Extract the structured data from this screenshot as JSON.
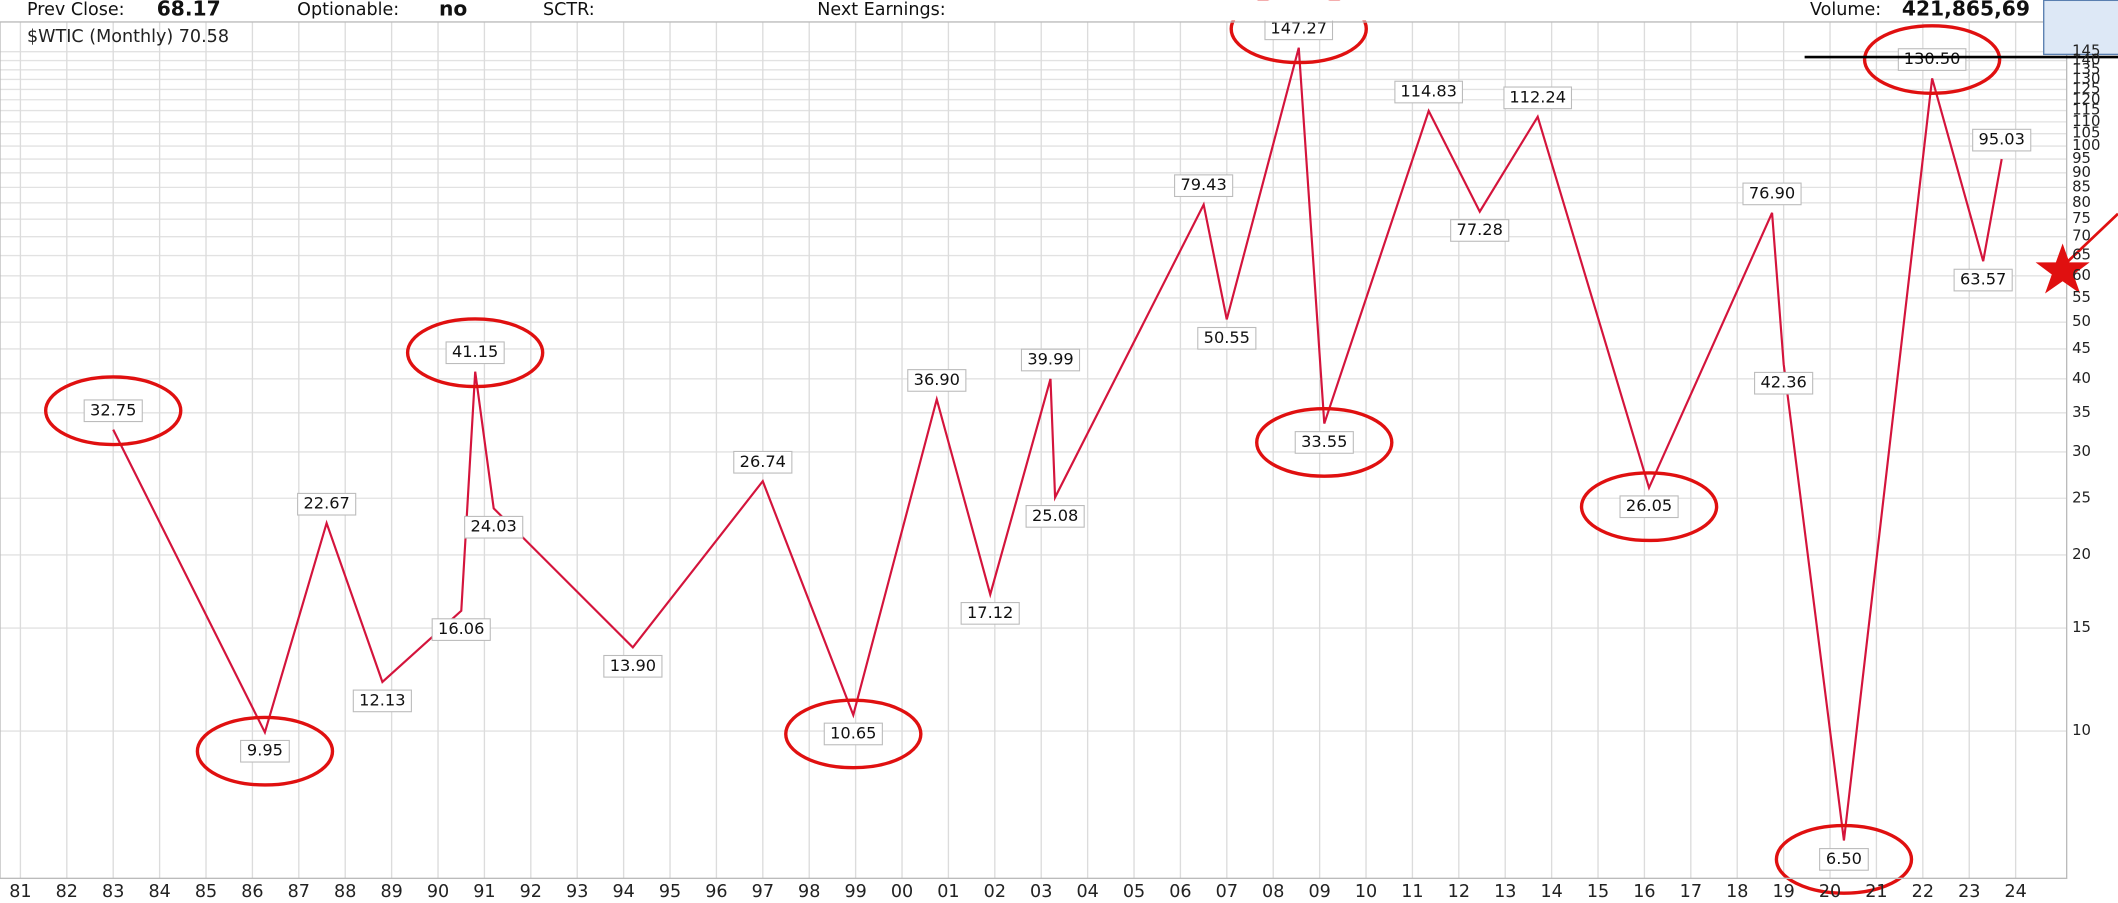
{
  "header": {
    "prev_close_label": "Prev Close:",
    "prev_close": "68.17",
    "optionable_label": "Optionable:",
    "optionable": "no",
    "sctr_label": "SCTR:",
    "earnings_label": "Next Earnings:",
    "volume_label": "Volume:",
    "volume": "421,865,69"
  },
  "chart_data": {
    "type": "line",
    "legend": "$WTIC (Monthly) 70.58",
    "log_scale": true,
    "grid": true,
    "xlim": [
      1980.56,
      2025.1
    ],
    "ylim": [
      5.6,
      163
    ],
    "xticks": [
      {
        "value": 1981,
        "label": "81"
      },
      {
        "value": 1982,
        "label": "82"
      },
      {
        "value": 1983,
        "label": "83"
      },
      {
        "value": 1984,
        "label": "84"
      },
      {
        "value": 1985,
        "label": "85"
      },
      {
        "value": 1986,
        "label": "86"
      },
      {
        "value": 1987,
        "label": "87"
      },
      {
        "value": 1988,
        "label": "88"
      },
      {
        "value": 1989,
        "label": "89"
      },
      {
        "value": 1990,
        "label": "90"
      },
      {
        "value": 1991,
        "label": "91"
      },
      {
        "value": 1992,
        "label": "92"
      },
      {
        "value": 1993,
        "label": "93"
      },
      {
        "value": 1994,
        "label": "94"
      },
      {
        "value": 1995,
        "label": "95"
      },
      {
        "value": 1996,
        "label": "96"
      },
      {
        "value": 1997,
        "label": "97"
      },
      {
        "value": 1998,
        "label": "98"
      },
      {
        "value": 1999,
        "label": "99"
      },
      {
        "value": 2000,
        "label": "00"
      },
      {
        "value": 2001,
        "label": "01"
      },
      {
        "value": 2002,
        "label": "02"
      },
      {
        "value": 2003,
        "label": "03"
      },
      {
        "value": 2004,
        "label": "04"
      },
      {
        "value": 2005,
        "label": "05"
      },
      {
        "value": 2006,
        "label": "06"
      },
      {
        "value": 2007,
        "label": "07"
      },
      {
        "value": 2008,
        "label": "08"
      },
      {
        "value": 2009,
        "label": "09"
      },
      {
        "value": 2010,
        "label": "10"
      },
      {
        "value": 2011,
        "label": "11"
      },
      {
        "value": 2012,
        "label": "12"
      },
      {
        "value": 2013,
        "label": "13"
      },
      {
        "value": 2014,
        "label": "14"
      },
      {
        "value": 2015,
        "label": "15"
      },
      {
        "value": 2016,
        "label": "16"
      },
      {
        "value": 2017,
        "label": "17"
      },
      {
        "value": 2018,
        "label": "18"
      },
      {
        "value": 2019,
        "label": "19"
      },
      {
        "value": 2020,
        "label": "20"
      },
      {
        "value": 2021,
        "label": "21"
      },
      {
        "value": 2022,
        "label": "22"
      },
      {
        "value": 2023,
        "label": "23"
      },
      {
        "value": 2024,
        "label": "24"
      }
    ],
    "yticks": [
      10,
      15,
      20,
      25,
      30,
      35,
      40,
      45,
      50,
      55,
      60,
      65,
      70,
      75,
      80,
      85,
      90,
      95,
      100,
      105,
      110,
      115,
      120,
      125,
      130,
      135,
      140,
      145
    ],
    "series": [
      {
        "name": "$WTIC",
        "color": "#d4143c",
        "x": [
          1983.0,
          1986.27,
          1987.6,
          1988.8,
          1990.5,
          1990.8,
          1991.2,
          1994.2,
          1997.0,
          1998.95,
          2000.75,
          2001.9,
          2003.2,
          2003.3,
          2006.5,
          2007.0,
          2008.55,
          2009.1,
          2011.35,
          2012.45,
          2013.7,
          2016.1,
          2018.75,
          2019.0,
          2020.3,
          2022.2,
          2023.3,
          2023.7
        ],
        "values": [
          32.75,
          9.95,
          22.67,
          12.13,
          16.06,
          41.15,
          24.03,
          13.9,
          26.74,
          10.65,
          36.9,
          17.12,
          39.99,
          25.08,
          79.43,
          50.55,
          147.27,
          33.55,
          114.83,
          77.28,
          112.24,
          26.05,
          76.9,
          42.36,
          6.5,
          130.5,
          63.57,
          95.03
        ],
        "value_labels": [
          "32.75",
          "9.95",
          "22.67",
          "12.13",
          "16.06",
          "41.15",
          "24.03",
          "13.90",
          "26.74",
          "10.65",
          "36.90",
          "17.12",
          "39.99",
          "25.08",
          "79.43",
          "50.55",
          "147.27",
          "33.55",
          "114.83",
          "77.28",
          "112.24",
          "26.05",
          "76.90",
          "42.36",
          "6.50",
          "130.50",
          "63.57",
          "95.03"
        ],
        "highlighted": [
          true,
          true,
          false,
          false,
          false,
          true,
          false,
          false,
          false,
          true,
          false,
          false,
          false,
          false,
          false,
          false,
          true,
          true,
          false,
          false,
          false,
          true,
          false,
          false,
          true,
          true,
          false,
          false
        ]
      }
    ]
  }
}
